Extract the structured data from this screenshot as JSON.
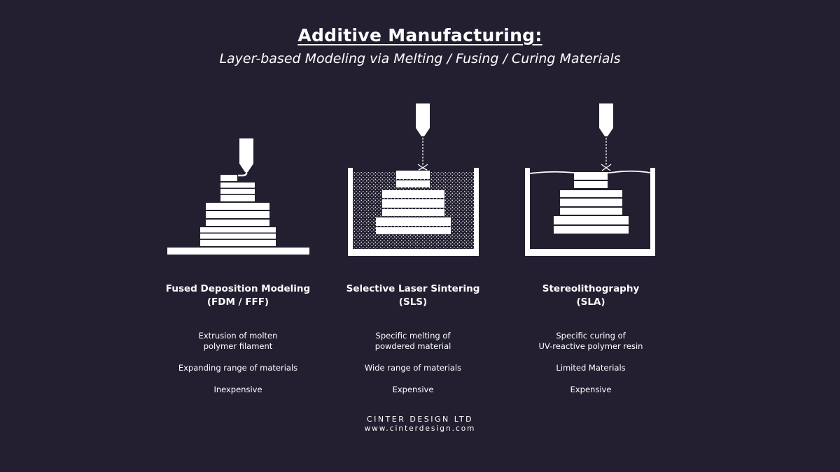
{
  "header": {
    "title": "Additive Manufacturing:",
    "subtitle": "Layer-based Modeling via Melting / Fusing / Curing Materials"
  },
  "methods": [
    {
      "name": "Fused Deposition Modeling",
      "abbr": "(FDM / FFF)",
      "desc_line1": "Extrusion of molten",
      "desc_line2": "polymer filament",
      "range": "Expanding range of materials",
      "cost": "Inexpensive"
    },
    {
      "name": "Selective Laser Sintering",
      "abbr": "(SLS)",
      "desc_line1": "Specific melting of",
      "desc_line2": "powdered material",
      "range": "Wide range of materials",
      "cost": "Expensive"
    },
    {
      "name": "Stereolithography",
      "abbr": "(SLA)",
      "desc_line1": "Specific curing of",
      "desc_line2": "UV-reactive polymer resin",
      "range": "Limited Materials",
      "cost": "Expensive"
    }
  ],
  "footer": {
    "company": "CINTER DESIGN LTD",
    "url": "www.cinterdesign.com"
  },
  "colors": {
    "background": "#231f30",
    "foreground": "#ffffff"
  }
}
